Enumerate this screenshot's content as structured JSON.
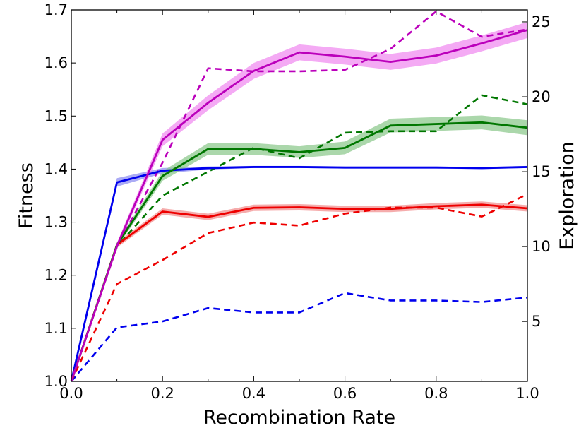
{
  "chart_data": {
    "type": "line",
    "title": "",
    "xlabel": "Recombination Rate",
    "ylabel": "Fitness",
    "y2label": "Exploration",
    "xlim": [
      0.0,
      1.0
    ],
    "ylim": [
      1.0,
      1.7
    ],
    "y2lim": [
      1.0,
      25.8
    ],
    "x": [
      0.0,
      0.1,
      0.2,
      0.3,
      0.4,
      0.5,
      0.6,
      0.7,
      0.8,
      0.9,
      1.0
    ],
    "x_ticks": [
      "0.0",
      "0.2",
      "0.4",
      "0.6",
      "0.8",
      "1.0"
    ],
    "y_ticks": [
      "1.0",
      "1.1",
      "1.2",
      "1.3",
      "1.4",
      "1.5",
      "1.6",
      "1.7"
    ],
    "y2_ticks": [
      "5",
      "10",
      "15",
      "20",
      "25"
    ],
    "grid": false,
    "fitness_series": [
      {
        "name": "blue fitness",
        "color": "#0000ee",
        "band_color": "#8f8ff2",
        "values": [
          1.0,
          1.375,
          1.397,
          1.402,
          1.404,
          1.404,
          1.403,
          1.403,
          1.403,
          1.402,
          1.404
        ],
        "ci": [
          0.0,
          0.008,
          0.005,
          0.003,
          0.002,
          0.002,
          0.002,
          0.002,
          0.002,
          0.002,
          0.002
        ]
      },
      {
        "name": "red fitness",
        "color": "#ee0000",
        "band_color": "#f29090",
        "values": [
          1.0,
          1.257,
          1.32,
          1.31,
          1.327,
          1.328,
          1.325,
          1.325,
          1.33,
          1.333,
          1.326
        ],
        "ci": [
          0.0,
          0.005,
          0.006,
          0.006,
          0.006,
          0.006,
          0.006,
          0.006,
          0.006,
          0.006,
          0.006
        ]
      },
      {
        "name": "green fitness",
        "color": "#007700",
        "band_color": "#8fc98f",
        "values": [
          1.0,
          1.257,
          1.387,
          1.438,
          1.438,
          1.432,
          1.44,
          1.482,
          1.485,
          1.488,
          1.478
        ],
        "ci": [
          0.0,
          0.005,
          0.009,
          0.011,
          0.011,
          0.011,
          0.012,
          0.013,
          0.013,
          0.013,
          0.014
        ]
      },
      {
        "name": "magenta fitness",
        "color": "#bb00bb",
        "band_color": "#f08ef0",
        "values": [
          1.0,
          1.255,
          1.455,
          1.525,
          1.585,
          1.62,
          1.612,
          1.602,
          1.614,
          1.637,
          1.662
        ],
        "ci": [
          0.0,
          0.006,
          0.012,
          0.014,
          0.015,
          0.015,
          0.015,
          0.015,
          0.015,
          0.015,
          0.015
        ]
      }
    ],
    "exploration_series": [
      {
        "name": "blue exploration",
        "color": "#0000ee",
        "values": [
          1.0,
          4.6,
          5.0,
          5.9,
          5.6,
          5.6,
          6.9,
          6.4,
          6.4,
          6.3,
          6.6
        ]
      },
      {
        "name": "red exploration",
        "color": "#ee0000",
        "values": [
          1.0,
          7.5,
          9.1,
          10.9,
          11.6,
          11.4,
          12.2,
          12.6,
          12.6,
          12.0,
          13.5
        ]
      },
      {
        "name": "green exploration",
        "color": "#007700",
        "values": [
          1.0,
          10.0,
          13.4,
          15.0,
          16.6,
          15.9,
          17.6,
          17.7,
          17.7,
          20.1,
          19.5
        ]
      },
      {
        "name": "magenta exploration",
        "color": "#bb00bb",
        "values": [
          1.0,
          10.0,
          15.6,
          21.9,
          21.7,
          21.7,
          21.8,
          23.2,
          25.7,
          24.0,
          24.5
        ]
      }
    ]
  }
}
